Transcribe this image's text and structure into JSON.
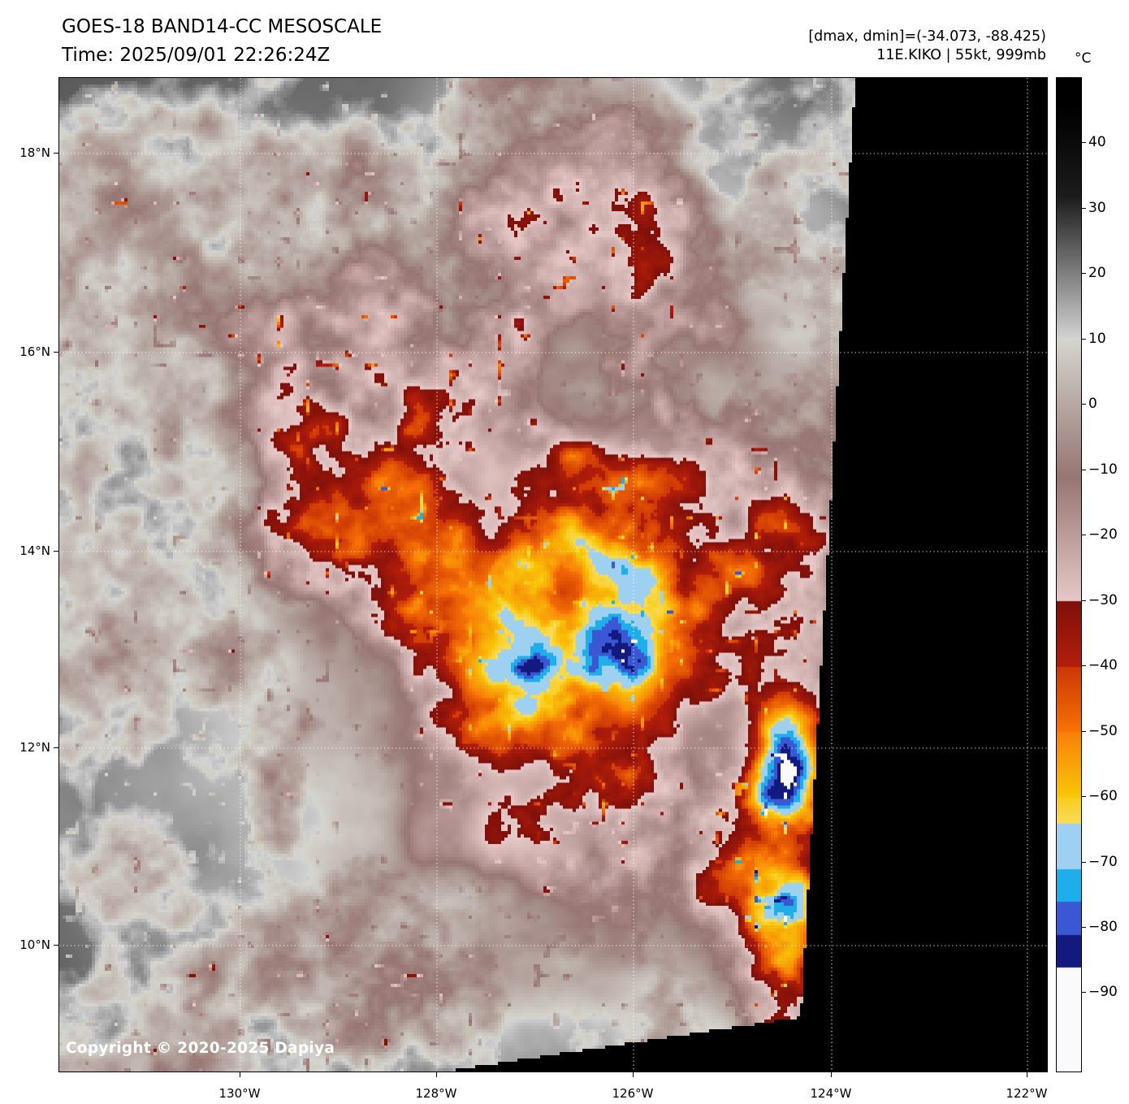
{
  "header": {
    "title": "GOES-18 BAND14-CC MESOSCALE",
    "time_line": "Time: 2025/09/01 22:26:24Z",
    "dmax_dmin": "[dmax, dmin]=(-34.073, -88.425)",
    "storm_info": "11E.KIKO | 55kt, 999mb"
  },
  "map": {
    "copyright": "Copyright © 2020-2025 Dapiya"
  },
  "axes": {
    "lat_labels": [
      "18°N",
      "16°N",
      "14°N",
      "12°N",
      "10°N"
    ],
    "lon_labels": [
      "130°W",
      "128°W",
      "126°W",
      "124°W",
      "122°W"
    ]
  },
  "colorbar": {
    "unit": "°C",
    "tick_labels": [
      "40",
      "30",
      "20",
      "10",
      "0",
      "−10",
      "−20",
      "−30",
      "−40",
      "−50",
      "−60",
      "−70",
      "−80",
      "−90"
    ],
    "tick_values": [
      40,
      30,
      20,
      10,
      0,
      -10,
      -20,
      -30,
      -40,
      -50,
      -60,
      -70,
      -80,
      -90
    ],
    "key_colors": {
      "warm_black": "#000000",
      "gray_light": "#d5d5cd",
      "brown": "#977672",
      "pink": "#e6c9c8",
      "dark_red": "#80100a",
      "red_orange": "#cd3705",
      "orange": "#f88005",
      "yellow": "#f9cd1e",
      "pale_blue": "#9ed0f2",
      "cyan": "#1eafeb",
      "royal_blue": "#3a58d4",
      "navy": "#121a80",
      "cold_white": "#fafafc"
    }
  },
  "chart_data": {
    "type": "heatmap",
    "title": "GOES-18 BAND14-CC MESOSCALE",
    "time": "2025/09/01 22:26:24Z",
    "x_ticks": [
      "130°W",
      "128°W",
      "126°W",
      "124°W",
      "122°W"
    ],
    "y_ticks": [
      "18°N",
      "16°N",
      "14°N",
      "12°N",
      "10°N"
    ],
    "colorbar_unit": "°C",
    "colorbar_tick_range": [
      40,
      -90
    ],
    "dmax": -34.073,
    "dmin": -88.425,
    "storm": {
      "id": "11E.KIKO",
      "intensity_kt": 55,
      "pressure_mb": 999
    }
  }
}
